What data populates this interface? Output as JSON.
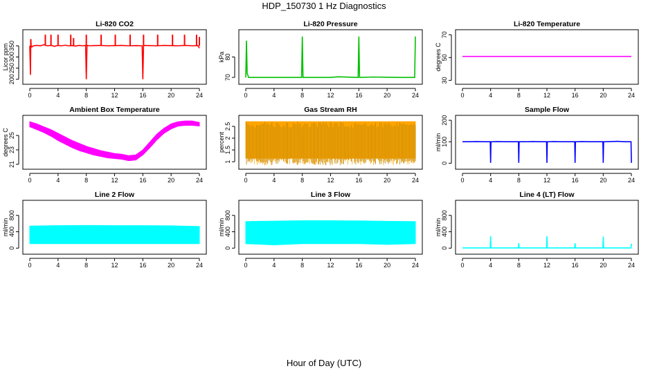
{
  "figure": {
    "title": "HDP_150730  1 Hz Diagnostics",
    "xlabel": "Hour of Day (UTC)"
  },
  "chart_data": [
    {
      "type": "line",
      "title": "Li-820 CO2",
      "ylabel": "Licor ppm",
      "color": "#ff0000",
      "xlim": [
        0,
        24
      ],
      "xticks": [
        0,
        4,
        8,
        12,
        16,
        20,
        24
      ],
      "ylim": [
        190,
        410
      ],
      "yticks": [
        200,
        250,
        300,
        350
      ],
      "series": [
        {
          "x": [
            0,
            0.1,
            0.15,
            0.2,
            0.3,
            0.5,
            1,
            1.5,
            2,
            2.5,
            3,
            3.5,
            4,
            4.5,
            5,
            5.5,
            6,
            6.5,
            7,
            7.5,
            7.9,
            8,
            8.1,
            8.5,
            9,
            10,
            11,
            12,
            13,
            14,
            15,
            15.9,
            16,
            16.1,
            17,
            18,
            19,
            20,
            21,
            22,
            23,
            23.8,
            24
          ],
          "y": [
            350,
            220,
            380,
            350,
            345,
            350,
            352,
            350,
            355,
            350,
            352,
            348,
            352,
            350,
            353,
            350,
            351,
            349,
            352,
            350,
            352,
            200,
            352,
            350,
            351,
            352,
            350,
            351,
            352,
            350,
            351,
            350,
            200,
            352,
            351,
            350,
            352,
            351,
            350,
            352,
            350,
            351,
            340
          ]
        }
      ],
      "spikes": [
        {
          "x": 0.15,
          "y": 380
        },
        {
          "x": 2.2,
          "y": 400
        },
        {
          "x": 3.0,
          "y": 400
        },
        {
          "x": 4.0,
          "y": 400
        },
        {
          "x": 5.8,
          "y": 400
        },
        {
          "x": 6.2,
          "y": 385
        },
        {
          "x": 8.0,
          "y": 400
        },
        {
          "x": 10.1,
          "y": 400
        },
        {
          "x": 12.1,
          "y": 400
        },
        {
          "x": 14.2,
          "y": 400
        },
        {
          "x": 16.1,
          "y": 400
        },
        {
          "x": 18.1,
          "y": 400
        },
        {
          "x": 20.2,
          "y": 400
        },
        {
          "x": 21.9,
          "y": 400
        },
        {
          "x": 23.6,
          "y": 400
        },
        {
          "x": 24.0,
          "y": 390
        }
      ]
    },
    {
      "type": "line",
      "title": "Li-820 Pressure",
      "ylabel": "kPa",
      "color": "#00c000",
      "xlim": [
        0,
        24
      ],
      "xticks": [
        0,
        4,
        8,
        12,
        16,
        20,
        24
      ],
      "ylim": [
        68,
        92
      ],
      "yticks": [
        70,
        80
      ],
      "series": [
        {
          "x": [
            0,
            0.1,
            0.2,
            0.4,
            2,
            4,
            6,
            7.9,
            8,
            8.1,
            10,
            12,
            13,
            15.9,
            16,
            16.1,
            18,
            20,
            22,
            23.9,
            24
          ],
          "y": [
            70,
            88,
            72,
            70,
            70,
            70,
            70,
            70,
            90,
            70,
            70,
            70,
            70.3,
            70,
            90,
            70,
            70.2,
            70.1,
            70,
            70,
            90
          ]
        }
      ]
    },
    {
      "type": "line",
      "title": "Li-820 Temperature",
      "ylabel": "degrees C",
      "color": "#ff00ff",
      "xlim": [
        0,
        24
      ],
      "xticks": [
        0,
        4,
        8,
        12,
        16,
        20,
        24
      ],
      "ylim": [
        29,
        72
      ],
      "yticks": [
        30,
        50,
        70
      ],
      "series": [
        {
          "x": [
            0,
            24
          ],
          "y": [
            51,
            51
          ]
        }
      ]
    },
    {
      "type": "area",
      "title": "Ambient Box Temperature",
      "ylabel": "degrees C",
      "color": "#ff00ff",
      "xlim": [
        0,
        24
      ],
      "xticks": [
        0,
        4,
        8,
        12,
        16,
        20,
        24
      ],
      "ylim": [
        20.7,
        27.4
      ],
      "yticks": [
        21,
        23,
        25
      ],
      "series": [
        {
          "x": [
            0,
            1,
            2,
            3,
            4,
            5,
            6,
            7,
            8,
            9,
            10,
            11,
            12,
            13,
            14,
            15,
            16,
            17,
            18,
            19,
            20,
            21,
            22,
            23,
            24
          ],
          "low": [
            26.2,
            25.8,
            25.4,
            24.9,
            24.3,
            23.8,
            23.3,
            22.9,
            22.6,
            22.3,
            22.1,
            21.9,
            21.8,
            21.7,
            21.5,
            21.6,
            22.3,
            23.3,
            24.4,
            25.3,
            25.9,
            26.3,
            26.4,
            26.4,
            26.3
          ],
          "high": [
            26.9,
            26.6,
            26.2,
            25.8,
            25.3,
            24.8,
            24.3,
            23.9,
            23.5,
            23.2,
            22.9,
            22.7,
            22.5,
            22.4,
            22.2,
            22.3,
            23.0,
            24.1,
            25.2,
            26.0,
            26.6,
            26.9,
            27.0,
            27.0,
            26.8
          ]
        }
      ]
    },
    {
      "type": "area",
      "title": "Gas Stream RH",
      "ylabel": "percent",
      "color": "#ffa500",
      "color2": "#b8860b",
      "xlim": [
        0,
        24
      ],
      "xticks": [
        0,
        4,
        8,
        12,
        16,
        20,
        24
      ],
      "ylim": [
        0.8,
        2.85
      ],
      "yticks": [
        1.0,
        1.5,
        2.0,
        2.5
      ],
      "series": [
        {
          "x": [
            0,
            24
          ],
          "low": [
            1.15,
            1.15
          ],
          "high": [
            2.7,
            2.7
          ]
        }
      ]
    },
    {
      "type": "line",
      "title": "Sample Flow",
      "ylabel": "ml/min",
      "color": "#0000ff",
      "xlim": [
        0,
        24
      ],
      "xticks": [
        0,
        4,
        8,
        12,
        16,
        20,
        24
      ],
      "ylim": [
        -15,
        210
      ],
      "yticks": [
        0,
        100,
        200
      ],
      "series": [
        {
          "x": [
            0,
            1,
            2,
            3,
            3.95,
            4,
            4.05,
            5,
            6,
            7,
            7.95,
            8,
            8.05,
            9,
            10,
            11,
            11.95,
            12,
            12.05,
            13,
            14,
            15,
            15.95,
            16,
            16.05,
            17,
            18,
            19,
            19.95,
            20,
            20.05,
            21,
            22,
            23,
            23.95,
            24
          ],
          "y": [
            100,
            100,
            101,
            100,
            100,
            2,
            100,
            101,
            100,
            100,
            100,
            2,
            100,
            100,
            101,
            100,
            100,
            2,
            100,
            101,
            100,
            100,
            100,
            2,
            100,
            101,
            100,
            100,
            100,
            2,
            100,
            101,
            102,
            100,
            100,
            2
          ]
        }
      ]
    },
    {
      "type": "area",
      "title": "Line 2 Flow",
      "ylabel": "ml/min",
      "color": "#00ffff",
      "xlim": [
        0,
        24
      ],
      "xticks": [
        0,
        4,
        8,
        12,
        16,
        20,
        24
      ],
      "ylim": [
        -80,
        1100
      ],
      "yticks": [
        0,
        400,
        800
      ],
      "series": [
        {
          "x": [
            0,
            4,
            8,
            12,
            16,
            20,
            24
          ],
          "low": [
            110,
            110,
            110,
            110,
            110,
            110,
            110
          ],
          "high": [
            540,
            550,
            555,
            550,
            550,
            545,
            530
          ]
        }
      ]
    },
    {
      "type": "area",
      "title": "Line 3 Flow",
      "ylabel": "ml/min",
      "color": "#00ffff",
      "xlim": [
        0,
        24
      ],
      "xticks": [
        0,
        4,
        8,
        12,
        16,
        20,
        24
      ],
      "ylim": [
        -80,
        1100
      ],
      "yticks": [
        0,
        400,
        800
      ],
      "series": [
        {
          "x": [
            0,
            4,
            8,
            12,
            16,
            20,
            24
          ],
          "low": [
            110,
            80,
            110,
            110,
            110,
            90,
            110
          ],
          "high": [
            650,
            660,
            670,
            670,
            665,
            655,
            650
          ]
        }
      ]
    },
    {
      "type": "line",
      "title": "Line 4 (LT) Flow",
      "ylabel": "ml/min",
      "color": "#00ffff",
      "xlim": [
        0,
        24
      ],
      "xticks": [
        0,
        4,
        8,
        12,
        16,
        20,
        24
      ],
      "ylim": [
        -80,
        1100
      ],
      "yticks": [
        0,
        400,
        800
      ],
      "series": [
        {
          "x": [
            0,
            3.95,
            4,
            4.05,
            7.95,
            8,
            8.05,
            11.95,
            12,
            12.05,
            15.95,
            16,
            16.05,
            19.95,
            20,
            20.05,
            23.95,
            24
          ],
          "y": [
            5,
            5,
            290,
            5,
            5,
            120,
            5,
            5,
            290,
            5,
            5,
            120,
            5,
            5,
            280,
            5,
            5,
            110
          ]
        }
      ]
    }
  ]
}
